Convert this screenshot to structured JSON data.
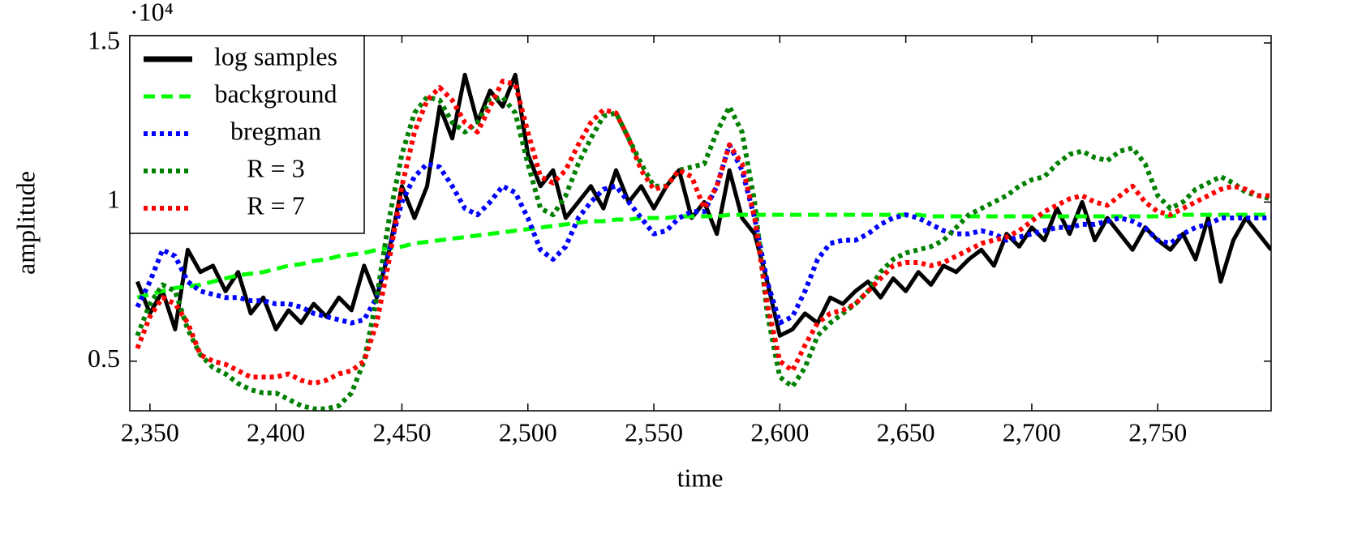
{
  "chart_data": {
    "type": "line",
    "xlabel": "time",
    "ylabel": "amplitude",
    "y_multiplier": "·10⁴",
    "xlim": [
      2342,
      2795
    ],
    "ylim": [
      0.344,
      1.523
    ],
    "xticks": [
      {
        "value": 2350,
        "label": "2,350"
      },
      {
        "value": 2400,
        "label": "2,400"
      },
      {
        "value": 2450,
        "label": "2,450"
      },
      {
        "value": 2500,
        "label": "2,500"
      },
      {
        "value": 2550,
        "label": "2,550"
      },
      {
        "value": 2600,
        "label": "2,600"
      },
      {
        "value": 2650,
        "label": "2,650"
      },
      {
        "value": 2700,
        "label": "2,700"
      },
      {
        "value": 2750,
        "label": "2,750"
      }
    ],
    "yticks": [
      0.5,
      1,
      1.5
    ],
    "legend": "upper left",
    "x": [
      2345,
      2350,
      2355,
      2360,
      2365,
      2370,
      2375,
      2380,
      2385,
      2390,
      2395,
      2400,
      2405,
      2410,
      2415,
      2420,
      2425,
      2430,
      2435,
      2440,
      2445,
      2450,
      2455,
      2460,
      2465,
      2470,
      2475,
      2480,
      2485,
      2490,
      2495,
      2500,
      2505,
      2510,
      2515,
      2520,
      2525,
      2530,
      2535,
      2540,
      2545,
      2550,
      2555,
      2560,
      2565,
      2570,
      2575,
      2580,
      2585,
      2590,
      2595,
      2600,
      2605,
      2610,
      2615,
      2620,
      2625,
      2630,
      2635,
      2640,
      2645,
      2650,
      2655,
      2660,
      2665,
      2670,
      2675,
      2680,
      2685,
      2690,
      2695,
      2700,
      2705,
      2710,
      2715,
      2720,
      2725,
      2730,
      2735,
      2740,
      2745,
      2750,
      2755,
      2760,
      2765,
      2770,
      2775,
      2780,
      2785,
      2790,
      2795
    ],
    "series": [
      {
        "name": "log samples",
        "color": "#000000",
        "linestyle": "solid",
        "values": [
          0.75,
          0.65,
          0.72,
          0.6,
          0.85,
          0.78,
          0.8,
          0.72,
          0.78,
          0.65,
          0.7,
          0.6,
          0.66,
          0.62,
          0.68,
          0.64,
          0.7,
          0.66,
          0.8,
          0.7,
          0.85,
          1.05,
          0.95,
          1.05,
          1.3,
          1.2,
          1.4,
          1.25,
          1.35,
          1.3,
          1.4,
          1.15,
          1.05,
          1.1,
          0.95,
          1.0,
          1.05,
          0.98,
          1.1,
          1.0,
          1.05,
          0.98,
          1.05,
          1.1,
          0.95,
          1.0,
          0.9,
          1.1,
          0.95,
          0.9,
          0.75,
          0.58,
          0.6,
          0.65,
          0.62,
          0.7,
          0.68,
          0.72,
          0.75,
          0.7,
          0.76,
          0.72,
          0.78,
          0.74,
          0.8,
          0.78,
          0.82,
          0.85,
          0.8,
          0.9,
          0.86,
          0.92,
          0.88,
          0.98,
          0.9,
          1.0,
          0.88,
          0.95,
          0.9,
          0.85,
          0.92,
          0.88,
          0.85,
          0.9,
          0.82,
          0.95,
          0.75,
          0.88,
          0.95,
          0.9,
          0.85
        ]
      },
      {
        "name": "background",
        "color": "#00ff00",
        "linestyle": "dashed",
        "values": [
          0.7,
          0.71,
          0.72,
          0.73,
          0.735,
          0.74,
          0.75,
          0.76,
          0.77,
          0.775,
          0.78,
          0.79,
          0.8,
          0.805,
          0.815,
          0.82,
          0.83,
          0.835,
          0.84,
          0.85,
          0.855,
          0.86,
          0.87,
          0.875,
          0.88,
          0.885,
          0.89,
          0.895,
          0.9,
          0.905,
          0.91,
          0.915,
          0.92,
          0.925,
          0.93,
          0.935,
          0.94,
          0.94,
          0.945,
          0.945,
          0.95,
          0.95,
          0.95,
          0.955,
          0.955,
          0.955,
          0.955,
          0.96,
          0.96,
          0.96,
          0.96,
          0.96,
          0.96,
          0.96,
          0.96,
          0.96,
          0.96,
          0.96,
          0.96,
          0.96,
          0.96,
          0.96,
          0.96,
          0.955,
          0.955,
          0.955,
          0.955,
          0.955,
          0.955,
          0.955,
          0.955,
          0.955,
          0.955,
          0.955,
          0.955,
          0.955,
          0.955,
          0.955,
          0.955,
          0.955,
          0.955,
          0.955,
          0.955,
          0.96,
          0.96,
          0.96,
          0.96,
          0.96,
          0.96,
          0.96,
          0.96
        ]
      },
      {
        "name": "bregman",
        "color": "#0000ff",
        "linestyle": "dotted",
        "values": [
          0.67,
          0.75,
          0.85,
          0.83,
          0.75,
          0.72,
          0.71,
          0.7,
          0.7,
          0.69,
          0.69,
          0.68,
          0.68,
          0.67,
          0.65,
          0.64,
          0.63,
          0.62,
          0.63,
          0.7,
          0.85,
          1.0,
          1.08,
          1.12,
          1.11,
          1.05,
          0.98,
          0.96,
          1.0,
          1.05,
          1.03,
          0.95,
          0.85,
          0.82,
          0.86,
          0.95,
          1.0,
          1.04,
          1.05,
          1.0,
          0.95,
          0.9,
          0.91,
          0.95,
          0.97,
          0.97,
          1.05,
          1.18,
          1.1,
          0.95,
          0.75,
          0.62,
          0.64,
          0.72,
          0.82,
          0.87,
          0.88,
          0.88,
          0.9,
          0.93,
          0.95,
          0.96,
          0.95,
          0.93,
          0.91,
          0.9,
          0.9,
          0.91,
          0.9,
          0.88,
          0.89,
          0.9,
          0.91,
          0.92,
          0.92,
          0.93,
          0.93,
          0.94,
          0.95,
          0.94,
          0.92,
          0.88,
          0.87,
          0.9,
          0.92,
          0.93,
          0.95,
          0.95,
          0.95,
          0.95,
          0.95
        ]
      },
      {
        "name": "R = 3",
        "color": "#008000",
        "linestyle": "dotted",
        "values": [
          0.58,
          0.68,
          0.74,
          0.72,
          0.6,
          0.52,
          0.48,
          0.46,
          0.43,
          0.41,
          0.4,
          0.4,
          0.38,
          0.36,
          0.35,
          0.35,
          0.36,
          0.4,
          0.5,
          0.7,
          0.95,
          1.15,
          1.28,
          1.33,
          1.32,
          1.25,
          1.22,
          1.25,
          1.32,
          1.33,
          1.28,
          1.12,
          0.98,
          0.96,
          1.02,
          1.12,
          1.2,
          1.27,
          1.28,
          1.2,
          1.12,
          1.05,
          1.05,
          1.1,
          1.11,
          1.12,
          1.22,
          1.3,
          1.22,
          1.0,
          0.65,
          0.45,
          0.42,
          0.48,
          0.58,
          0.62,
          0.65,
          0.68,
          0.72,
          0.78,
          0.82,
          0.84,
          0.85,
          0.86,
          0.88,
          0.92,
          0.96,
          0.98,
          1.0,
          1.02,
          1.05,
          1.07,
          1.08,
          1.12,
          1.15,
          1.16,
          1.14,
          1.13,
          1.16,
          1.17,
          1.12,
          1.02,
          0.98,
          1.0,
          1.04,
          1.06,
          1.08,
          1.06,
          1.03,
          1.02,
          1.01
        ]
      },
      {
        "name": "R = 7",
        "color": "#ff0000",
        "linestyle": "dotted",
        "values": [
          0.54,
          0.64,
          0.7,
          0.68,
          0.62,
          0.52,
          0.5,
          0.49,
          0.47,
          0.45,
          0.45,
          0.45,
          0.46,
          0.44,
          0.43,
          0.44,
          0.46,
          0.47,
          0.5,
          0.62,
          0.82,
          1.05,
          1.22,
          1.32,
          1.36,
          1.32,
          1.25,
          1.22,
          1.3,
          1.38,
          1.37,
          1.22,
          1.08,
          1.06,
          1.1,
          1.18,
          1.25,
          1.29,
          1.28,
          1.2,
          1.1,
          1.04,
          1.05,
          1.1,
          1.08,
          0.98,
          1.05,
          1.18,
          1.12,
          0.95,
          0.68,
          0.5,
          0.47,
          0.55,
          0.62,
          0.65,
          0.66,
          0.68,
          0.72,
          0.76,
          0.8,
          0.81,
          0.81,
          0.8,
          0.81,
          0.83,
          0.85,
          0.87,
          0.88,
          0.89,
          0.91,
          0.94,
          0.97,
          0.99,
          1.01,
          1.02,
          1.0,
          0.99,
          1.02,
          1.05,
          1.0,
          0.97,
          0.96,
          0.98,
          1.0,
          1.02,
          1.04,
          1.05,
          1.04,
          1.02,
          1.02
        ]
      }
    ]
  }
}
